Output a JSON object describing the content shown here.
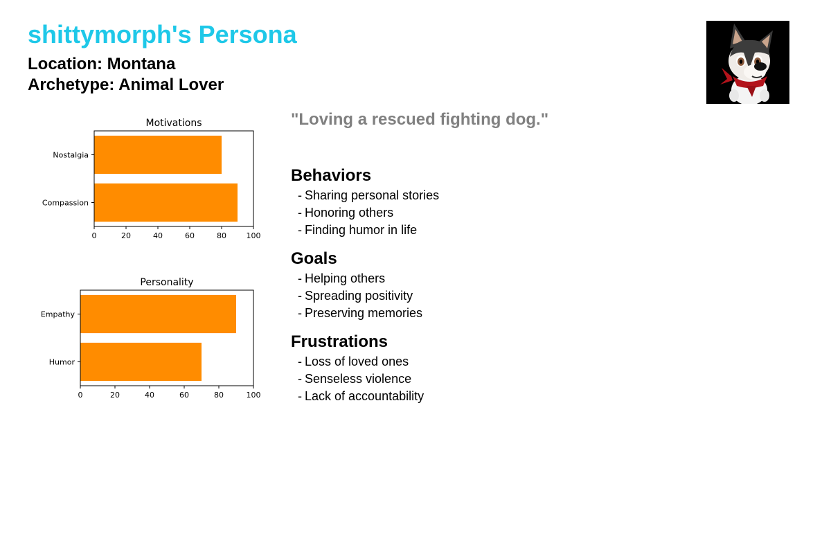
{
  "persona": {
    "title": "shittymorph's Persona",
    "location": "Location: Montana",
    "archetype": "Archetype: Animal Lover",
    "quote": "\"Loving a rescued fighting dog.\"",
    "avatar_icon": "cartoon-dog-with-red-bandana-icon"
  },
  "sections": [
    {
      "heading": "Behaviors",
      "items": [
        "Sharing personal stories",
        "Honoring others",
        "Finding humor in life"
      ]
    },
    {
      "heading": "Goals",
      "items": [
        "Helping others",
        "Spreading positivity",
        "Preserving memories"
      ]
    },
    {
      "heading": "Frustrations",
      "items": [
        "Loss of loved ones",
        "Senseless violence",
        "Lack of accountability"
      ]
    }
  ],
  "chart_data": [
    {
      "type": "bar",
      "orientation": "horizontal",
      "title": "Motivations",
      "categories": [
        "Nostalgia",
        "Compassion"
      ],
      "values": [
        80,
        90
      ],
      "xlim": [
        0,
        100
      ],
      "xticks": [
        0,
        20,
        40,
        60,
        80,
        100
      ],
      "color": "#ff8c00",
      "grid": false
    },
    {
      "type": "bar",
      "orientation": "horizontal",
      "title": "Personality",
      "categories": [
        "Empathy",
        "Humor"
      ],
      "values": [
        90,
        70
      ],
      "xlim": [
        0,
        100
      ],
      "xticks": [
        0,
        20,
        40,
        60,
        80,
        100
      ],
      "color": "#ff8c00",
      "grid": false
    }
  ]
}
